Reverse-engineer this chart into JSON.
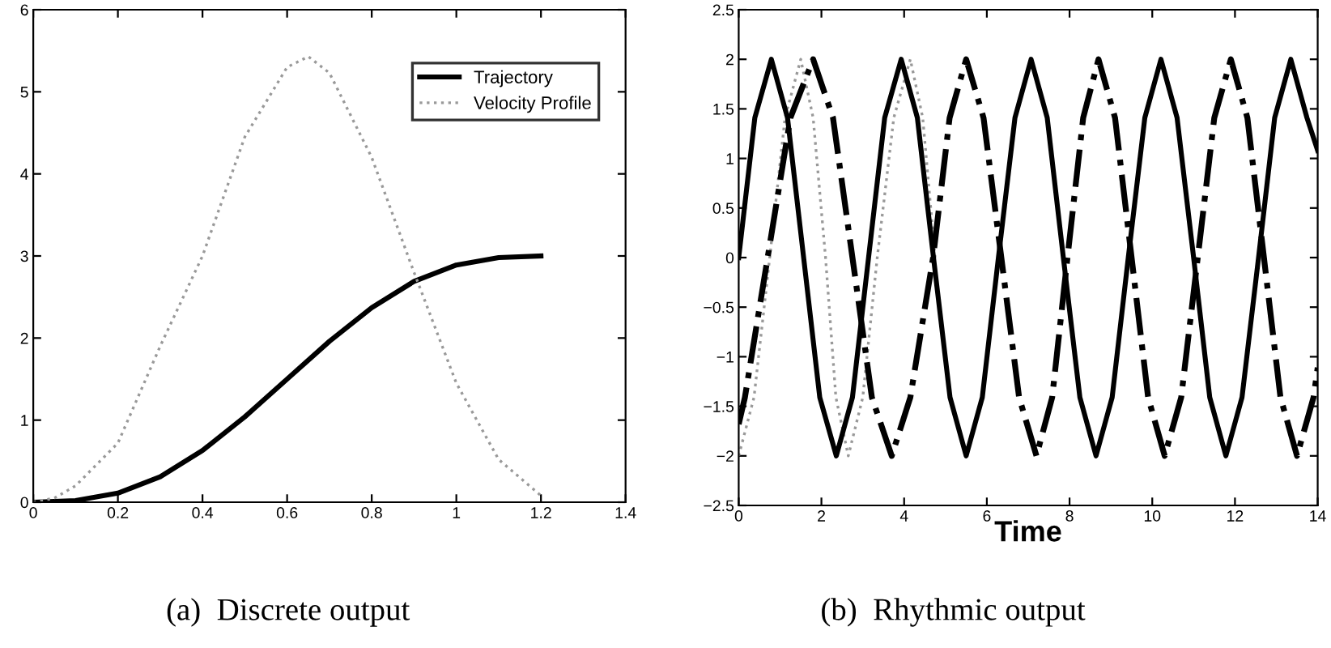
{
  "chart_data": [
    {
      "type": "line",
      "annotations": [
        "(a)  Discrete output"
      ],
      "xlim": [
        0,
        1.4
      ],
      "ylim": [
        0,
        6
      ],
      "xticks": [
        0,
        0.2,
        0.4,
        0.6,
        0.8,
        1,
        1.2,
        1.4
      ],
      "yticks": [
        0,
        1,
        2,
        3,
        4,
        5,
        6
      ],
      "legend": "top right",
      "grid": false,
      "series": [
        {
          "name": "Trajectory",
          "color": "#000000",
          "line_style": "solid",
          "x": [
            0,
            0.1,
            0.2,
            0.3,
            0.4,
            0.5,
            0.6,
            0.7,
            0.8,
            0.9,
            1.0,
            1.1,
            1.2
          ],
          "values": [
            0,
            0.02,
            0.11,
            0.31,
            0.63,
            1.04,
            1.5,
            1.96,
            2.37,
            2.69,
            2.89,
            2.98,
            3
          ]
        },
        {
          "name": "Velocity Profile",
          "color": "#999999",
          "line_style": "dotted",
          "x": [
            0,
            0.05,
            0.1,
            0.2,
            0.3,
            0.4,
            0.5,
            0.6,
            0.65,
            0.7,
            0.8,
            0.9,
            1.0,
            1.1,
            1.2
          ],
          "values": [
            0,
            0.05,
            0.2,
            0.72,
            1.9,
            3.0,
            4.45,
            5.3,
            5.43,
            5.23,
            4.2,
            2.8,
            1.45,
            0.52,
            0.08
          ]
        }
      ]
    },
    {
      "type": "line",
      "xlabel": "Time",
      "annotations": [
        "(b)  Rhythmic output"
      ],
      "xlim": [
        0,
        14
      ],
      "ylim": [
        -2.5,
        2.5
      ],
      "xticks": [
        0,
        2,
        4,
        6,
        8,
        10,
        12,
        14
      ],
      "yticks": [
        {
          "value": -2.5,
          "label": "−2.5"
        },
        {
          "value": -2,
          "label": "−2"
        },
        {
          "value": -1.5,
          "label": "−1.5"
        },
        {
          "value": -1,
          "label": "−1"
        },
        {
          "value": -0.5,
          "label": "−0.5"
        },
        0,
        0.5,
        1,
        1.5,
        2,
        2.5
      ],
      "legend": false,
      "grid": false,
      "series": [
        {
          "color": "#999999",
          "line_style": "dotted",
          "x": [
            0,
            0.37,
            0.75,
            1.12,
            1.5,
            1.8,
            2.1,
            2.35,
            2.65,
            3.0,
            3.35,
            3.75,
            4.15,
            4.45,
            4.75
          ],
          "values": [
            -2,
            -1.41,
            0,
            1.41,
            2,
            1.41,
            0,
            -1.41,
            -2,
            -1.41,
            0,
            1.41,
            2,
            1.41,
            0
          ]
        },
        {
          "color": "#000000",
          "line_style": "solid",
          "x": [
            0,
            0.39,
            0.79,
            1.18,
            1.57,
            1.96,
            2.36,
            2.75,
            3.14,
            3.53,
            3.93,
            4.32,
            4.71,
            5.11,
            5.5,
            5.89,
            6.28,
            6.68,
            7.07,
            7.46,
            7.85,
            8.25,
            8.64,
            9.03,
            9.42,
            9.82,
            10.21,
            10.6,
            11.0,
            11.39,
            11.78,
            12.17,
            12.57,
            12.96,
            13.35,
            13.74,
            14
          ],
          "values": [
            0,
            1.41,
            2,
            1.41,
            0,
            -1.41,
            -2,
            -1.41,
            0,
            1.41,
            2,
            1.41,
            0,
            -1.41,
            -2,
            -1.41,
            0,
            1.41,
            2,
            1.41,
            0,
            -1.41,
            -2,
            -1.41,
            0,
            1.41,
            2,
            1.41,
            0,
            -1.41,
            -2,
            -1.41,
            0,
            1.41,
            2,
            1.41,
            1.08
          ]
        },
        {
          "color": "#000000",
          "line_style": "dashdot",
          "x": [
            0,
            0.15,
            0.7,
            1.25,
            1.8,
            2.28,
            2.75,
            3.22,
            3.7,
            4.15,
            4.7,
            5.1,
            5.5,
            5.92,
            6.35,
            6.78,
            7.2,
            7.58,
            7.95,
            8.33,
            8.7,
            9.1,
            9.5,
            9.9,
            10.3,
            10.7,
            11.1,
            11.5,
            11.9,
            12.3,
            12.7,
            13.1,
            13.5,
            13.9,
            14
          ],
          "values": [
            -1.68,
            -1.41,
            0,
            1.41,
            2,
            1.41,
            0,
            -1.41,
            -2,
            -1.41,
            0,
            1.41,
            2,
            1.41,
            0,
            -1.41,
            -2,
            -1.41,
            0,
            1.41,
            2,
            1.41,
            0,
            -1.41,
            -2,
            -1.41,
            0,
            1.41,
            2,
            1.41,
            0,
            -1.41,
            -2,
            -1.41,
            -1.11
          ]
        }
      ]
    }
  ]
}
